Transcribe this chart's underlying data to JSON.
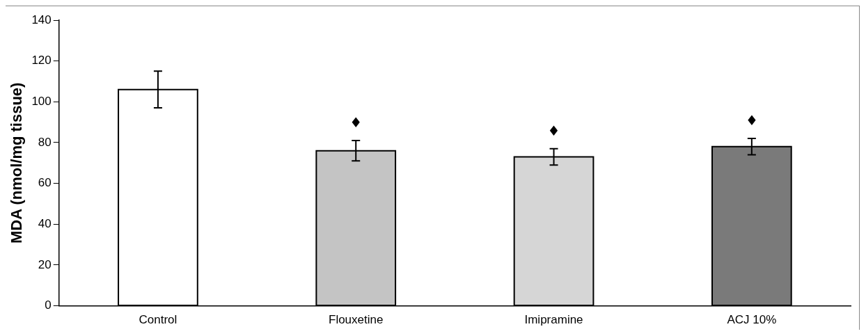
{
  "chart_data": {
    "type": "bar",
    "ylabel": "MDA (nmol/mg tissue)",
    "categories": [
      "Control",
      "Flouxetine",
      "Imipramine",
      "ACJ 10%"
    ],
    "values": [
      106,
      76,
      73,
      78
    ],
    "colors": [
      "#ffffff",
      "#c4c4c4",
      "#d6d6d6",
      "#7a7a7a"
    ],
    "errors": [
      9,
      5,
      4,
      4
    ],
    "ylim": [
      0,
      140
    ],
    "yticks": [
      0,
      20,
      40,
      60,
      80,
      100,
      120,
      140
    ],
    "grid": false,
    "legend": false,
    "annotations": [
      {
        "text": "♦",
        "x": "Flouxetine",
        "y": 81
      },
      {
        "text": "♦",
        "x": "Imipramine",
        "y": 77
      },
      {
        "text": "♦",
        "x": "ACJ 10%",
        "y": 82
      }
    ]
  }
}
